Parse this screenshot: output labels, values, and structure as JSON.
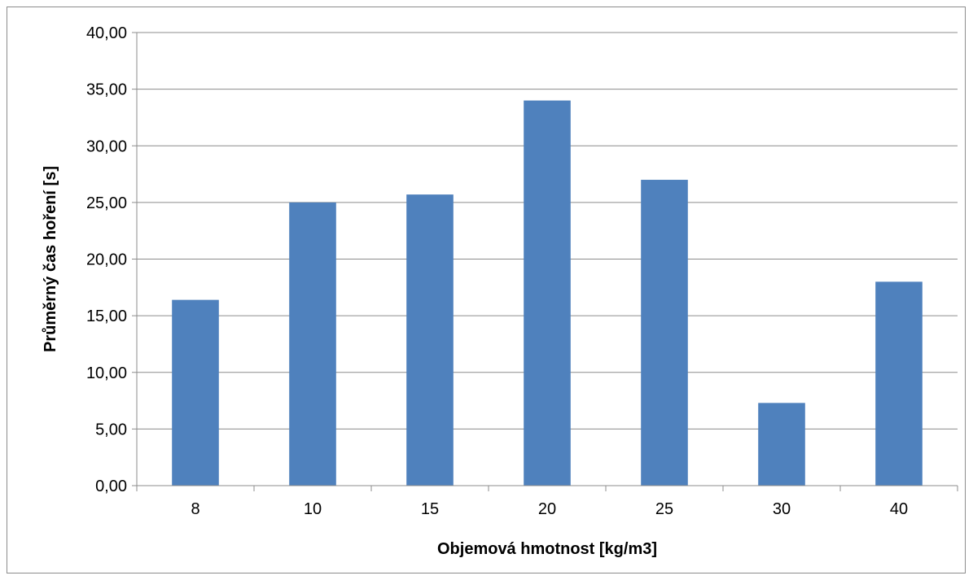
{
  "chart_data": {
    "type": "bar",
    "categories": [
      "8",
      "10",
      "15",
      "20",
      "25",
      "30",
      "40"
    ],
    "values": [
      16.4,
      25.0,
      25.7,
      34.0,
      27.0,
      7.3,
      18.0
    ],
    "y_ticks": [
      "0,00",
      "5,00",
      "10,00",
      "15,00",
      "20,00",
      "25,00",
      "30,00",
      "35,00",
      "40,00"
    ],
    "xlabel": "Objemová hmotnost [kg/m3]",
    "ylabel": "Průměrný čas hoření [s]",
    "ylim": [
      0,
      40
    ],
    "grid": true,
    "legend": "none",
    "colors": {
      "bar": "#4f81bd",
      "grid": "#8c8c8c",
      "axis": "#8c8c8c"
    }
  }
}
